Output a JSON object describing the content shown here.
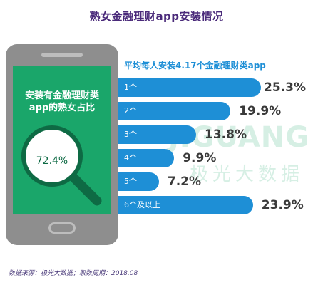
{
  "title": "熟女金融理财app安装情况",
  "phone": {
    "label_line1": "安装有金融理财类",
    "label_line2": "app的熟女占比",
    "share_value": "72.4%"
  },
  "watermark": {
    "brand": "JIGUANG",
    "text": "极光大数据"
  },
  "source": "数据来源：极光大数据；取数周期：2018.08",
  "colors": {
    "bar": "#1e8fd6",
    "screen": "#1aa66a",
    "title": "#4a2a7a"
  },
  "chart_data": {
    "type": "bar",
    "orientation": "horizontal",
    "title": "平均每人安装4.17个金融理财类app",
    "categories": [
      "1个",
      "2个",
      "3个",
      "4个",
      "5个",
      "6个及以上"
    ],
    "values": [
      25.3,
      19.9,
      13.8,
      9.9,
      7.2,
      23.9
    ],
    "value_labels": [
      "25.3%",
      "19.9%",
      "13.8%",
      "9.9%",
      "7.2%",
      "23.9%"
    ],
    "unit": "%"
  }
}
